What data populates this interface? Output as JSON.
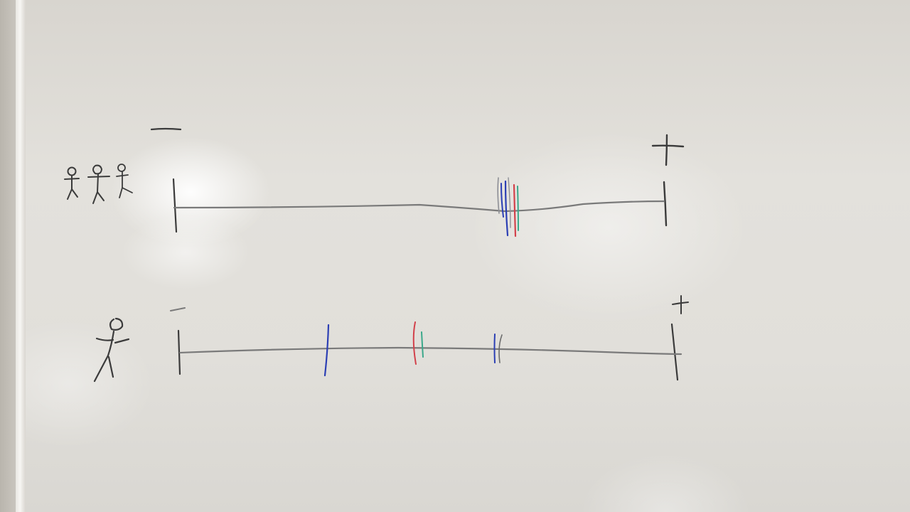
{
  "scene": {
    "subject": "whiteboard",
    "colors": {
      "black_marker": "#3b3b3b",
      "line_marker": "#7a7a7a",
      "blue_marker": "#2c3fb4",
      "red_marker": "#d2414b",
      "green_marker": "#3aa88a"
    }
  },
  "top_scale": {
    "minus_label": "—",
    "plus_label": "+",
    "figure_count": 3
  },
  "bottom_scale": {
    "minus_label": "—",
    "plus_label": "+",
    "figure_count": 1
  }
}
